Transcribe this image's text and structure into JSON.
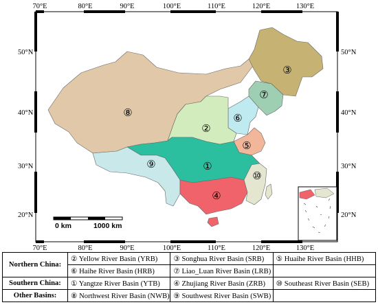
{
  "axes": {
    "top_labels": [
      "70°E",
      "80°E",
      "90°E",
      "100°E",
      "110°E",
      "120°E",
      "130°E"
    ],
    "bottom_labels": [
      "70°E",
      "80°E",
      "90°E",
      "100°E",
      "110°E",
      "120°E",
      "130°E"
    ],
    "left_labels": [
      "50°N",
      "40°N",
      "30°N",
      "20°N"
    ],
    "right_labels": [
      "50°N",
      "40°N",
      "30°N",
      "20°N"
    ]
  },
  "scale_bar": {
    "start": "0 km",
    "end": "1000 km"
  },
  "basin_markers": [
    {
      "num": "①",
      "name": "Yangtze River Basin",
      "color": "#2bbfa0"
    },
    {
      "num": "②",
      "name": "Yellow River Basin",
      "color": "#d3ecbe"
    },
    {
      "num": "③",
      "name": "Songhua River Basin",
      "color": "#c6b272"
    },
    {
      "num": "④",
      "name": "Zhujiang River Basin",
      "color": "#f0636b"
    },
    {
      "num": "⑤",
      "name": "Huaihe River Basin",
      "color": "#f2b69a"
    },
    {
      "num": "⑥",
      "name": "Haihe River Basin",
      "color": "#bfeaf0"
    },
    {
      "num": "⑦",
      "name": "Liao_Luan River Basin",
      "color": "#9fcfb3"
    },
    {
      "num": "⑧",
      "name": "Northwest River Basin",
      "color": "#e1c8a8"
    },
    {
      "num": "⑨",
      "name": "Southwest River Basin",
      "color": "#c9e8ea"
    },
    {
      "num": "⑩",
      "name": "Southeast River Basin",
      "color": "#e5e6cf"
    }
  ],
  "legend": {
    "rows": [
      {
        "group": "Northern China:",
        "cells": [
          "② Yellow River Basin (YRB)",
          "③ Songhua River Basin (SRB)",
          "⑤ Huaihe River Basin (HHB)"
        ]
      },
      {
        "group": "",
        "cells": [
          "⑥ Haihe River Basin (HRB)",
          "⑦ Liao_Luan River Basin (LRB)",
          ""
        ]
      },
      {
        "group": "Southern China:",
        "cells": [
          "① Yangtze River Basin (YTB)",
          "④ Zhujiang River Basin (ZRB)",
          "⑩ Southeast River Basin (SEB)"
        ]
      },
      {
        "group": "Other Basins:",
        "cells": [
          "⑧ Northwest River Basin (NWB)",
          "⑨ Southwest River Basin (SWB)",
          ""
        ]
      }
    ]
  }
}
